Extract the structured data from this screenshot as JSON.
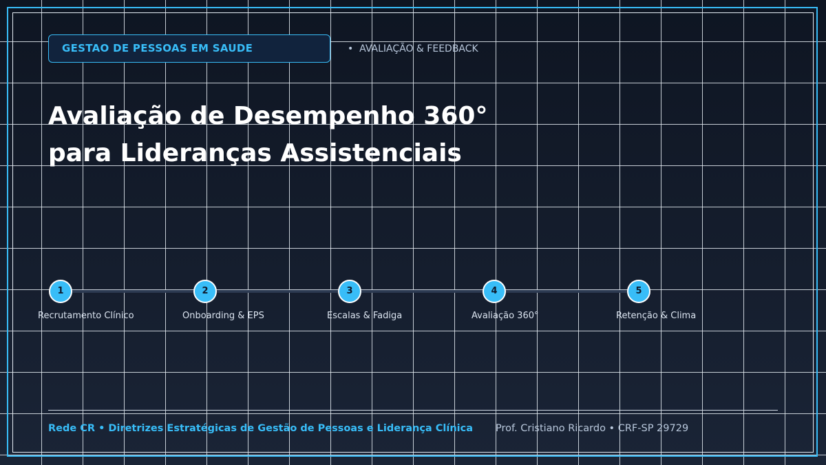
{
  "header": {
    "badge": "GESTAO DE PESSOAS EM SAUDE",
    "tag": "•  AVALIAÇÃO & FEEDBACK"
  },
  "title": {
    "lines": [
      "Avaliação de Desempenho 360°",
      "para Lideranças Assistenciais"
    ]
  },
  "timeline": {
    "steps": [
      {
        "number": "1",
        "label": "Recrutamento Clínico"
      },
      {
        "number": "2",
        "label": "Onboarding & EPS"
      },
      {
        "number": "3",
        "label": "Escalas & Fadiga"
      },
      {
        "number": "4",
        "label": "Avaliação 360°"
      },
      {
        "number": "5",
        "label": "Retenção & Clima"
      }
    ]
  },
  "footer": {
    "brand": "Rede CR • Diretrizes Estratégicas de Gestão de Pessoas e Liderança Clínica",
    "author": "Prof. Cristiano Ricardo • CRF-SP 29729"
  }
}
